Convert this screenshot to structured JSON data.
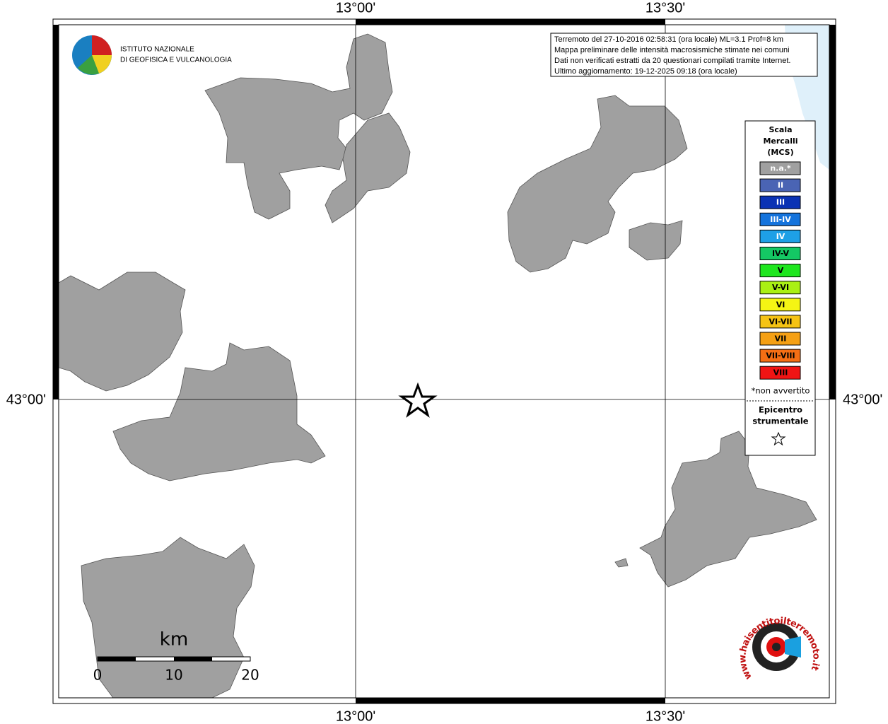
{
  "map": {
    "lon_labels": [
      "13°00'",
      "13°30'"
    ],
    "lat_labels": [
      "43°00'"
    ],
    "info": [
      "Terremoto del 27-10-2016 02:58:31 (ora locale) ML=3.1 Prof=8 km",
      "Mappa preliminare delle intensità macrosismiche stimate nei comuni",
      "Dati non verificati estratti da 20 questionari compilati tramite Internet.",
      "Ultimo aggiornamento: 19-12-2025 09:18 (ora locale)"
    ],
    "logo": [
      "ISTITUTO NAZIONALE",
      "DI GEOFISICA E VULCANOLOGIA"
    ],
    "legend": {
      "title": [
        "Scala",
        "Mercalli",
        "(MCS)"
      ],
      "items": [
        {
          "label": "n.a.*",
          "color": "#a0a0a0",
          "text_color": "#ffffff"
        },
        {
          "label": "II",
          "color": "#4a64b4",
          "text_color": "#ffffff"
        },
        {
          "label": "III",
          "color": "#0a32b4",
          "text_color": "#ffffff"
        },
        {
          "label": "III-IV",
          "color": "#1473dc",
          "text_color": "#ffffff"
        },
        {
          "label": "IV",
          "color": "#1ea0e6",
          "text_color": "#ffffff"
        },
        {
          "label": "IV-V",
          "color": "#14c864",
          "text_color": "#000000"
        },
        {
          "label": "V",
          "color": "#1ee61e",
          "text_color": "#000000"
        },
        {
          "label": "V-VI",
          "color": "#aaf014",
          "text_color": "#000000"
        },
        {
          "label": "VI",
          "color": "#f5f514",
          "text_color": "#000000"
        },
        {
          "label": "VI-VII",
          "color": "#f5c314",
          "text_color": "#000000"
        },
        {
          "label": "VII",
          "color": "#f5a014",
          "text_color": "#000000"
        },
        {
          "label": "VII-VIII",
          "color": "#f56e14",
          "text_color": "#000000"
        },
        {
          "label": "VIII",
          "color": "#f01414",
          "text_color": "#000000"
        }
      ],
      "note": "*non avvertito",
      "epicenter": [
        "Epicentro",
        "strumentale"
      ]
    },
    "scale_bar": {
      "unit": "km",
      "labels": [
        "0",
        "10",
        "20"
      ]
    },
    "site_logo": "www.haisentitoilterremoto.it"
  }
}
